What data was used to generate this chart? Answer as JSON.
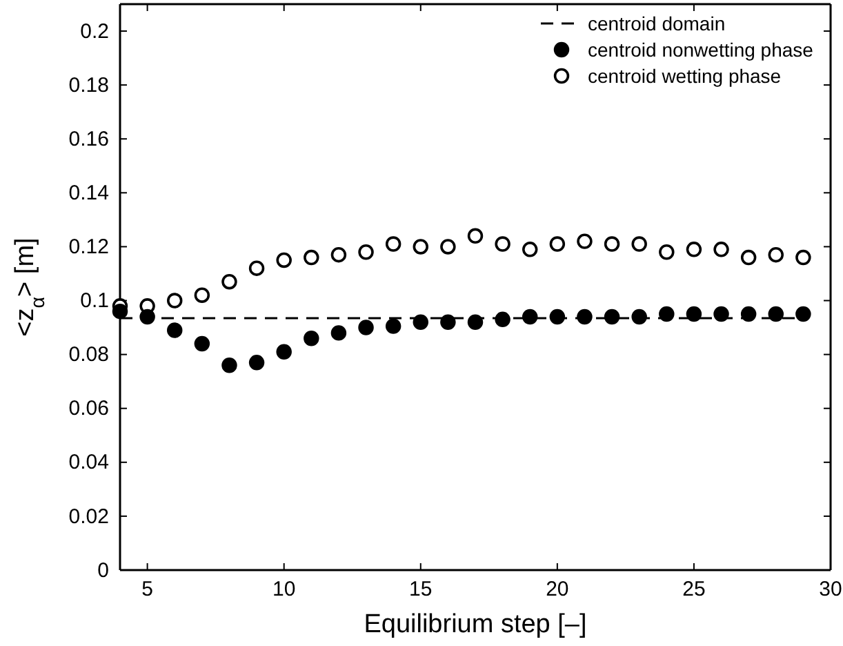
{
  "chart_data": {
    "type": "scatter",
    "xlabel": "Equilibrium step [–]",
    "ylabel": "<z$_{α}$> [m]",
    "x": [
      4,
      5,
      6,
      7,
      8,
      9,
      10,
      11,
      12,
      13,
      14,
      15,
      16,
      17,
      18,
      19,
      20,
      21,
      22,
      23,
      24,
      25,
      26,
      27,
      28,
      29
    ],
    "series": [
      {
        "name": "centroid domain",
        "type": "line",
        "line_style": "dashed",
        "marker": "none",
        "color": "#000000",
        "x": [
          4,
          29
        ],
        "values": [
          0.0935,
          0.0935
        ]
      },
      {
        "name": "centroid nonwetting phase",
        "marker": "circle",
        "color": "#000000",
        "values": [
          0.096,
          0.094,
          0.089,
          0.084,
          0.076,
          0.077,
          0.081,
          0.086,
          0.088,
          0.09,
          0.0905,
          0.092,
          0.092,
          0.092,
          0.093,
          0.094,
          0.094,
          0.094,
          0.094,
          0.094,
          0.095,
          0.095,
          0.095,
          0.095,
          0.095,
          0.095
        ]
      },
      {
        "name": "centroid wetting phase",
        "marker": "circle",
        "color": "#ffffff",
        "values": [
          0.098,
          0.098,
          0.1,
          0.102,
          0.107,
          0.112,
          0.115,
          0.116,
          0.117,
          0.118,
          0.121,
          0.12,
          0.12,
          0.124,
          0.121,
          0.119,
          0.121,
          0.122,
          0.121,
          0.121,
          0.118,
          0.119,
          0.119,
          0.116,
          0.117,
          0.116
        ]
      }
    ],
    "xlim": [
      4,
      30
    ],
    "xticks": [
      5,
      10,
      15,
      20,
      25,
      30
    ],
    "ylim": [
      0,
      0.21
    ],
    "yticks": [
      0,
      0.02,
      0.04,
      0.06,
      0.08,
      0.1,
      0.12,
      0.14,
      0.16,
      0.18,
      0.2
    ],
    "grid": false,
    "legend": "top right"
  }
}
